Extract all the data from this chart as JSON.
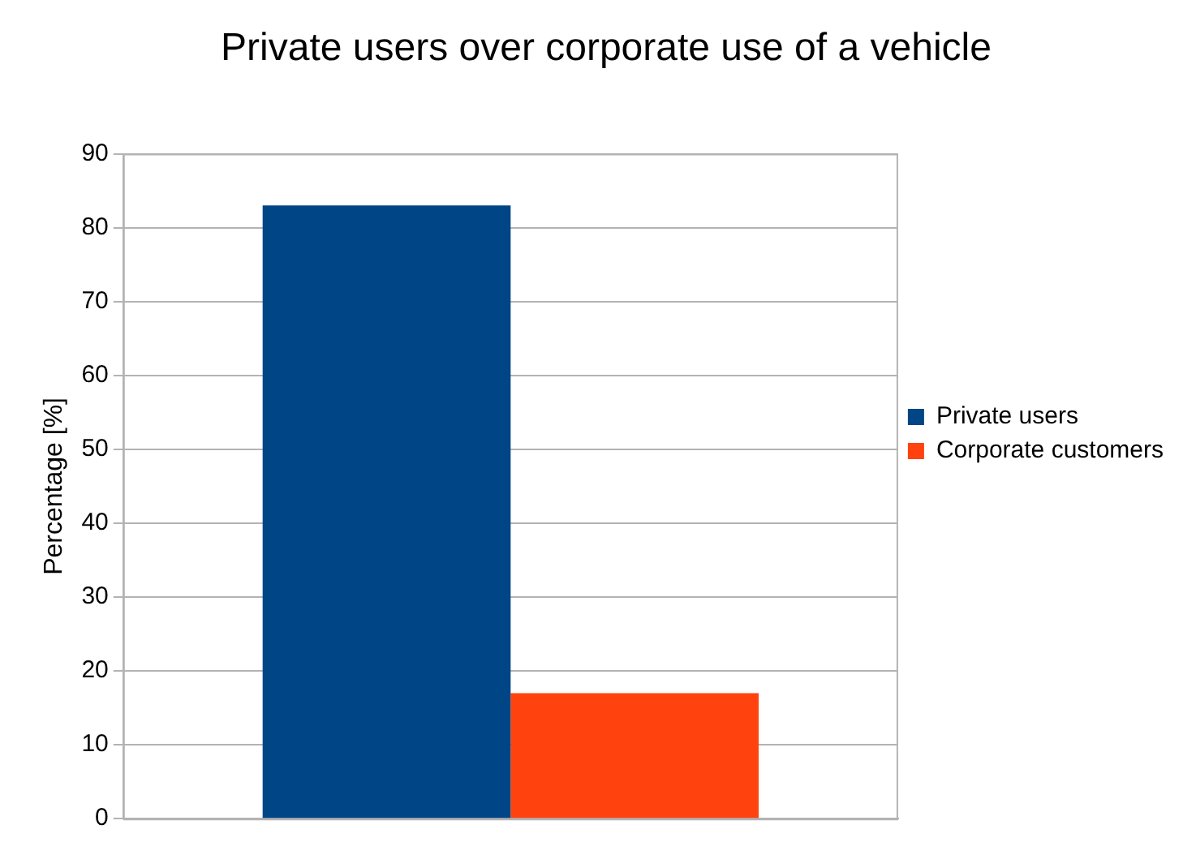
{
  "chart_data": {
    "type": "bar",
    "title": "Private users over corporate use of a vehicle",
    "ylabel": "Percentage [%]",
    "categories": [
      null
    ],
    "series": [
      {
        "name": "Private users",
        "color": "#004586",
        "values": [
          83
        ]
      },
      {
        "name": "Corporate customers",
        "color": "#ff420e",
        "values": [
          17
        ]
      }
    ],
    "ylim": [
      0,
      90
    ],
    "yticks": [
      0,
      10,
      20,
      30,
      40,
      50,
      60,
      70,
      80,
      90
    ],
    "grid": "y",
    "legend": "right"
  }
}
